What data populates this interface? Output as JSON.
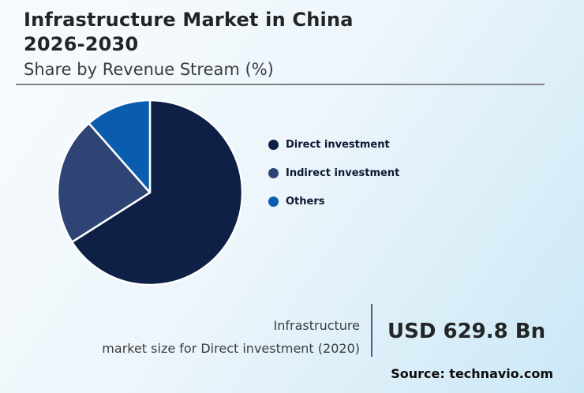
{
  "header": {
    "title_line1": "Infrastructure Market in China",
    "title_line2": "2026-2030",
    "subtitle": "Share by Revenue Stream (%)"
  },
  "chart_data": {
    "type": "pie",
    "title": "Infrastructure Market in China 2026-2030",
    "subtitle": "Share by Revenue Stream (%)",
    "categories": [
      "Direct investment",
      "Indirect investment",
      "Others"
    ],
    "values": [
      66,
      22.5,
      11.5
    ],
    "colors": [
      "#0e2045",
      "#2e4474",
      "#0a5cae"
    ],
    "start_angle_deg": 0,
    "direction": "clockwise",
    "legend_position": "right",
    "slice_border_color": "#ffffff"
  },
  "callout": {
    "label_line1": "Infrastructure",
    "label_line2": "market size for Direct investment (2020)",
    "value": "USD 629.8 Bn"
  },
  "footer": {
    "source": "Source: technavio.com"
  },
  "theme": {
    "background_start": "#f7fbfe",
    "background_end": "#cbe8f6",
    "header_rule_color": "#7f8285",
    "callout_divider_color": "#4a657f",
    "legend_text_color": "#0d1830",
    "title_text_color": "#222426"
  }
}
